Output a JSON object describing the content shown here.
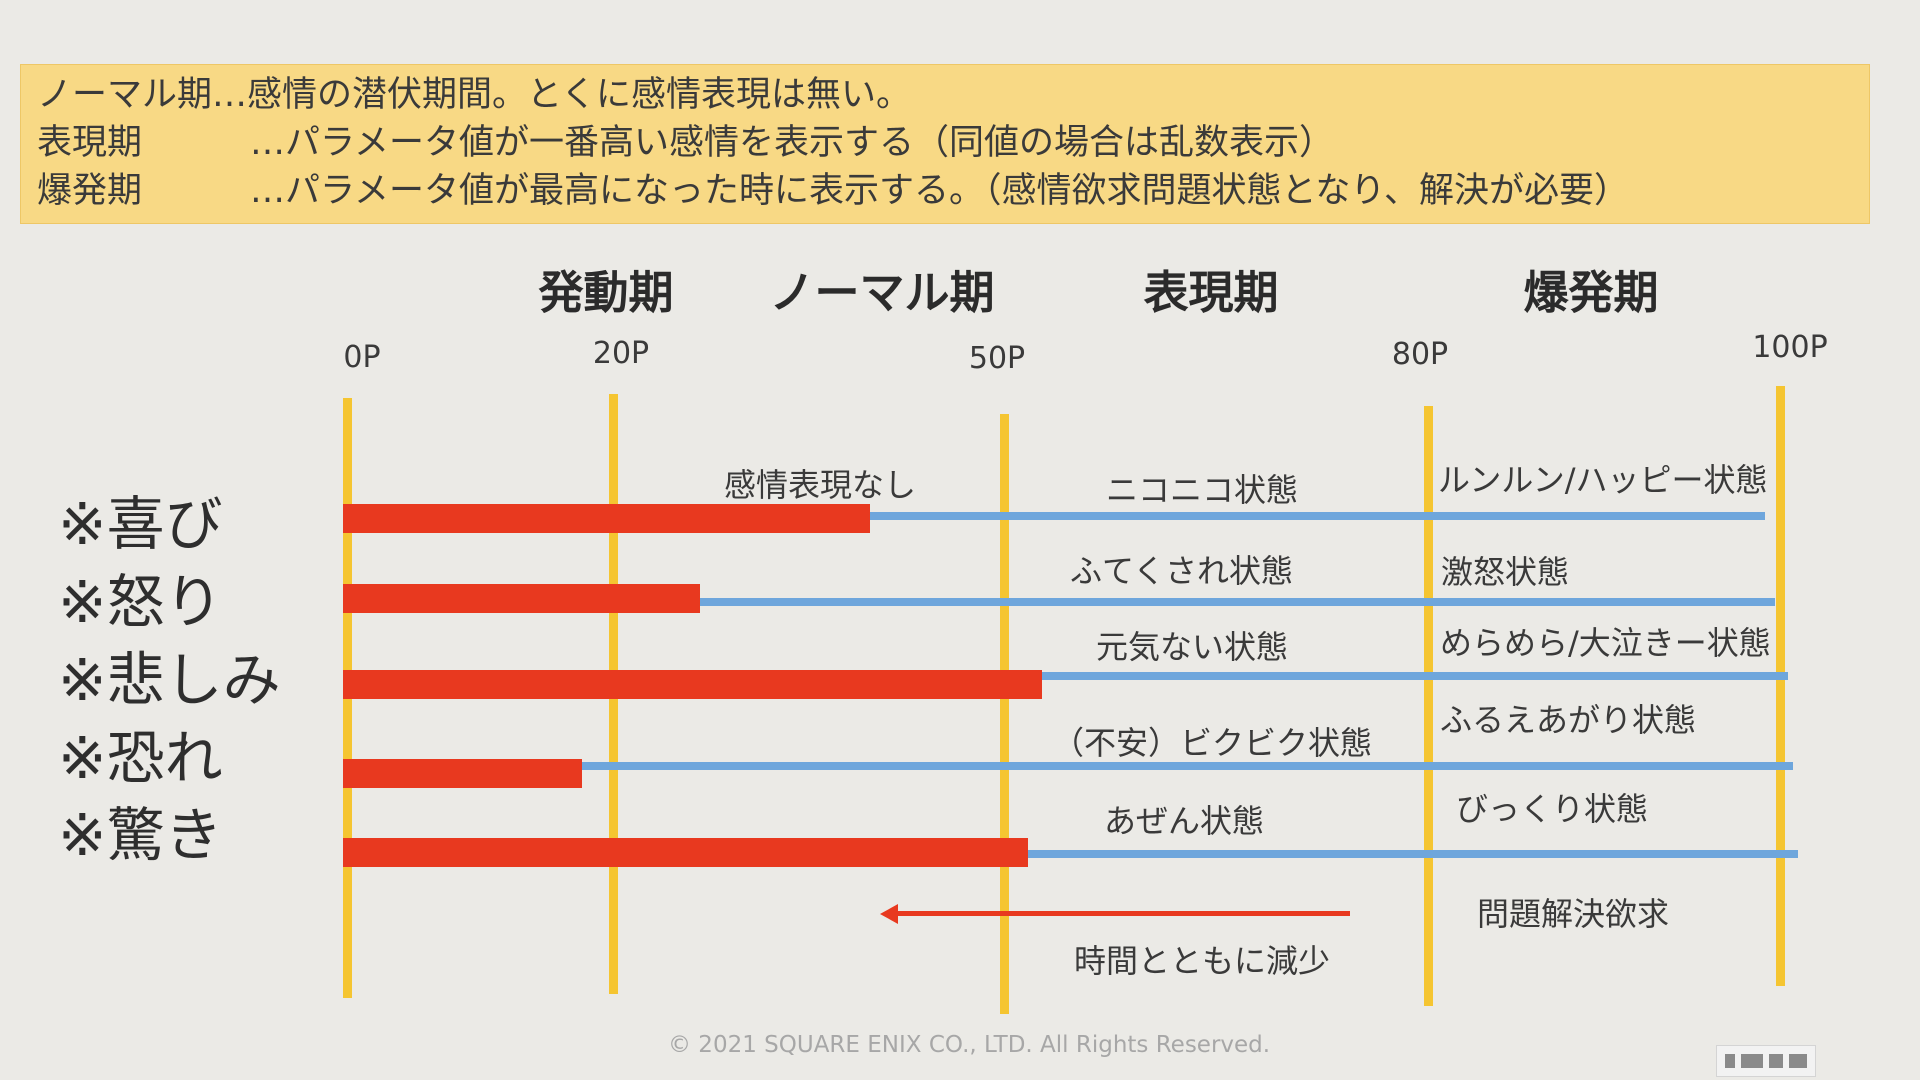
{
  "legend": {
    "lines": [
      {
        "term": "",
        "desc": "ノーマル期…感情の潜伏期間。とくに感情表現は無い。"
      },
      {
        "term": "表現期",
        "desc": "…パラメータ値が一番高い感情を表示する（同値の場合は乱数表示）"
      },
      {
        "term": "爆発期",
        "desc": "…パラメータ値が最高になった時に表示する。（感情欲求問題状態となり、解決が必要）"
      }
    ]
  },
  "phases": [
    "発動期",
    "ノーマル期",
    "表現期",
    "爆発期"
  ],
  "ticks": [
    "0P",
    "20P",
    "50P",
    "80P",
    "100P"
  ],
  "emotions": [
    {
      "label": "※喜び",
      "value": 40,
      "normal_state": "感情表現なし",
      "express_state": "ニコニコ状態",
      "burst_state": "ルンルン/ハッピー状態"
    },
    {
      "label": "※怒り",
      "value": 27,
      "normal_state": "",
      "express_state": "ふてくされ状態",
      "burst_state": "激怒状態"
    },
    {
      "label": "※悲しみ",
      "value": 53,
      "normal_state": "",
      "express_state": "元気ない状態",
      "burst_state": "めらめら/大泣きー状態"
    },
    {
      "label": "※恐れ",
      "value": 18,
      "normal_state": "",
      "express_state": "（不安）ビクビク状態",
      "burst_state": "ふるえあがり状態"
    },
    {
      "label": "※驚き",
      "value": 52,
      "normal_state": "",
      "express_state": "あぜん状態",
      "burst_state": "びっくり状態"
    }
  ],
  "decrease_label": "時間とともに減少",
  "problem_label": "問題解決欲求",
  "copyright": "© 2021 SQUARE ENIX CO., LTD. All Rights Reserved.",
  "colors": {
    "bar": "#e8391f",
    "track": "#6ea6dc",
    "divider": "#f5c531",
    "legend_bg": "#f8d985"
  }
}
